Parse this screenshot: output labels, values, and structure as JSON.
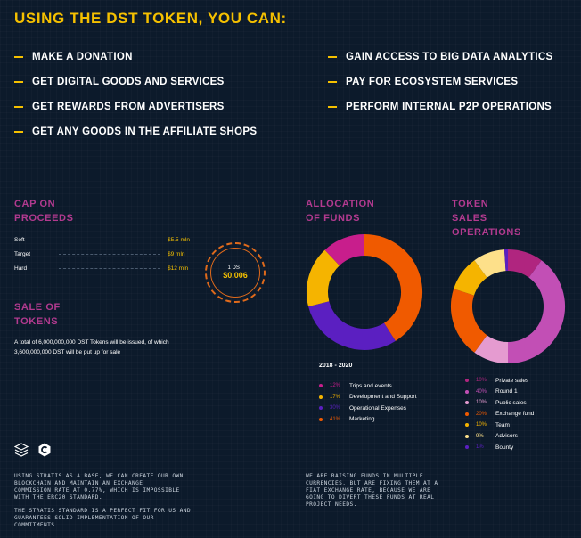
{
  "title": "USING THE DST TOKEN, YOU CAN:",
  "uses_left": [
    "MAKE A DONATION",
    "GET DIGITAL GOODS AND SERVICES",
    "GET REWARDS FROM ADVERTISERS",
    "GET ANY GOODS IN THE AFFILIATE SHOPS"
  ],
  "uses_right": [
    "GAIN ACCESS TO BIG DATA ANALYTICS",
    "PAY FOR ECOSYSTEM SERVICES",
    "PERFORM INTERNAL P2P OPERATIONS"
  ],
  "cap": {
    "heading_1": "CAP ON",
    "heading_2": "PROCEEDS",
    "rows": [
      {
        "label": "Soft",
        "value": "$5.5 mln"
      },
      {
        "label": "Target",
        "value": "$9 mln"
      },
      {
        "label": "Hard",
        "value": "$12 mln"
      }
    ]
  },
  "badge": {
    "top": "1 DST",
    "value": "$0.006"
  },
  "sale": {
    "heading_1": "SALE OF",
    "heading_2": "TOKENS",
    "text_1": "A total of 6,000,000,000 DST Tokens will be issued, of which",
    "text_2": "3,600,000,000 DST will be put up for sale"
  },
  "allocation": {
    "heading_1": "ALLOCATION",
    "heading_2": "OF FUNDS",
    "year": "2018 - 2020",
    "items": [
      {
        "pct": "12%",
        "label": "Trips and events",
        "value": 12,
        "color": "#c81e8c"
      },
      {
        "pct": "17%",
        "label": "Development and Support",
        "value": 17,
        "color": "#f5b400"
      },
      {
        "pct": "30%",
        "label": "Operational Expenses",
        "value": 30,
        "color": "#5b1fc1"
      },
      {
        "pct": "41%",
        "label": "Marketing",
        "value": 41,
        "color": "#f05a00"
      }
    ]
  },
  "token_ops": {
    "heading_1": "TOKEN",
    "heading_2": "SALES",
    "heading_3": "OPERATIONS",
    "items": [
      {
        "pct": "10%",
        "label": "Private sales",
        "value": 10,
        "color": "#b0257f"
      },
      {
        "pct": "40%",
        "label": "Round 1",
        "value": 40,
        "color": "#c24fb5"
      },
      {
        "pct": "10%",
        "label": "Public sales",
        "value": 10,
        "color": "#e59bd0"
      },
      {
        "pct": "20%",
        "label": "Exchange fund",
        "value": 20,
        "color": "#f05a00"
      },
      {
        "pct": "10%",
        "label": "Team",
        "value": 10,
        "color": "#f5b400"
      },
      {
        "pct": "9%",
        "label": "Advisors",
        "value": 9,
        "color": "#fde08a"
      },
      {
        "pct": "1%",
        "label": "Bounty",
        "value": 1,
        "color": "#5b1fc1"
      }
    ]
  },
  "footer_left": {
    "p1_l1": "USING STRATIS AS A BASE, WE CAN CREATE OUR OWN",
    "p1_l2": "BLOCKCHAIN AND MAINTAIN AN EXCHANGE",
    "p1_l3": "COMMISSION RATE AT 0.77%, WHICH IS IMPOSSIBLE",
    "p1_l4": "WITH THE ERC20 STANDARD.",
    "p2_l1": "THE STRATIS STANDARD IS A PERFECT FIT FOR US AND",
    "p2_l2": "GUARANTEES SOLID IMPLEMENTATION OF OUR",
    "p2_l3": "COMMITMENTS."
  },
  "footer_right": {
    "l1": "WE ARE RAISING FUNDS IN MULTIPLE",
    "l2": "CURRENCIES, BUT ARE FIXING THEM AT A",
    "l3": "FIAT EXCHANGE RATE, BECAUSE WE ARE",
    "l4": "GOING TO DIVERT THESE FUNDS AT REAL",
    "l5": "PROJECT NEEDS."
  },
  "icons": [
    "stratis-stack-icon",
    "c-sharp-icon"
  ]
}
